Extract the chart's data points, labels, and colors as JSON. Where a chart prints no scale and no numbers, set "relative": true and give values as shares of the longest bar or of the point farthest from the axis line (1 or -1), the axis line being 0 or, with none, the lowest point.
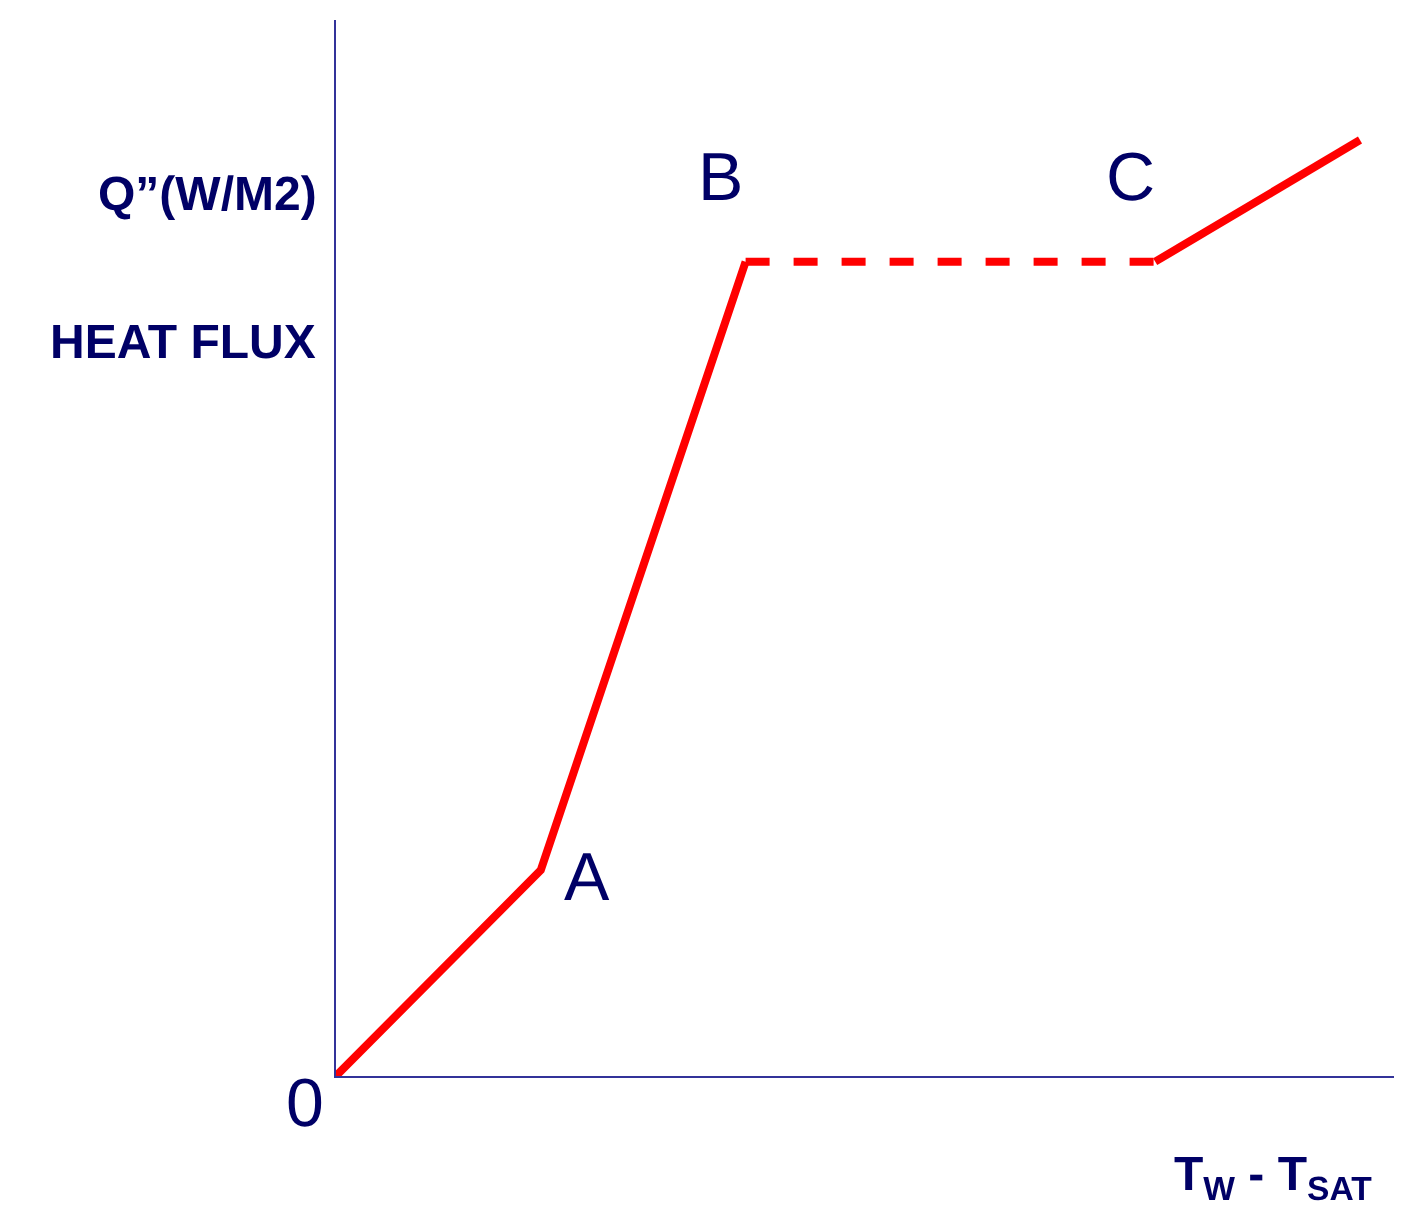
{
  "chart_data": {
    "type": "line",
    "relative": true,
    "ylabel": "Q”(W/M2)\nHEAT FLUX",
    "xlabel": "T$_{W}$ - T$_{SAT}$",
    "line_style": "solid",
    "categories": [
      null,
      null,
      null,
      null,
      null,
      null
    ],
    "series": [
      {
        "color": "#ff0000",
        "values": [
          0,
          0.22,
          0.87,
          null,
          null,
          null
        ]
      },
      {
        "color": "#ff0000",
        "values": [
          null,
          null,
          0.87,
          0.87,
          0.87,
          null
        ],
        "line_style": "dashed"
      },
      {
        "color": "#ff0000",
        "values": [
          null,
          null,
          null,
          null,
          0.87,
          1
        ]
      }
    ],
    "annotations": [
      "0",
      "A",
      "B",
      "C"
    ]
  }
}
